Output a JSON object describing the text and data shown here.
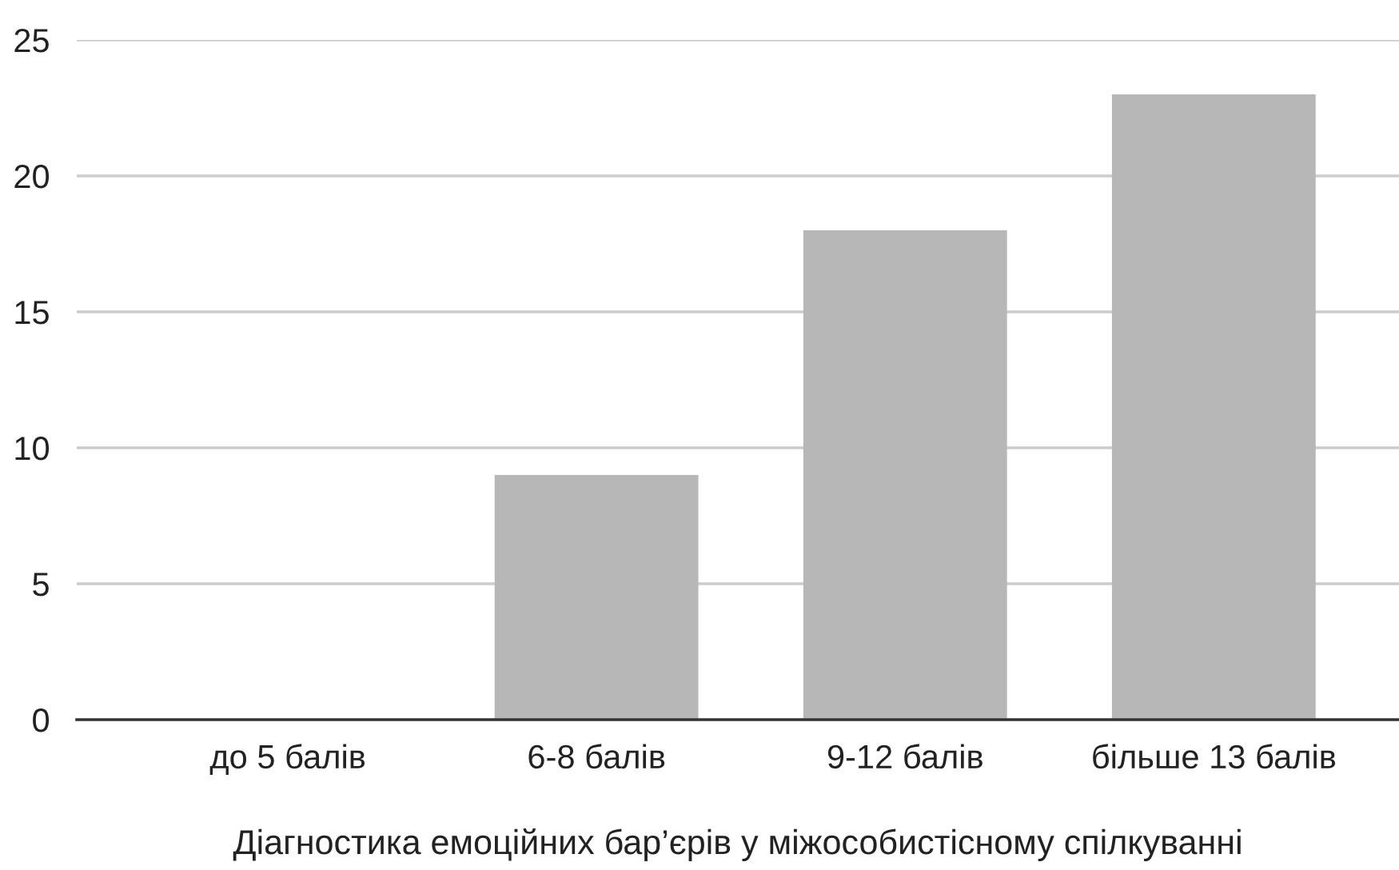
{
  "chart_data": {
    "type": "bar",
    "xlabel": "Діагностика емоційних бар’єрів у міжособистісному спілкуванні",
    "categories": [
      "до 5 балів",
      "6-8 балів",
      "9-12 балів",
      "більше 13 балів"
    ],
    "values": [
      0,
      9,
      18,
      23
    ],
    "color": "#b7b7b7",
    "ylim": [
      0,
      25
    ],
    "yticks": [
      0,
      5,
      10,
      15,
      20,
      25
    ],
    "grid": "y",
    "legend": false
  }
}
